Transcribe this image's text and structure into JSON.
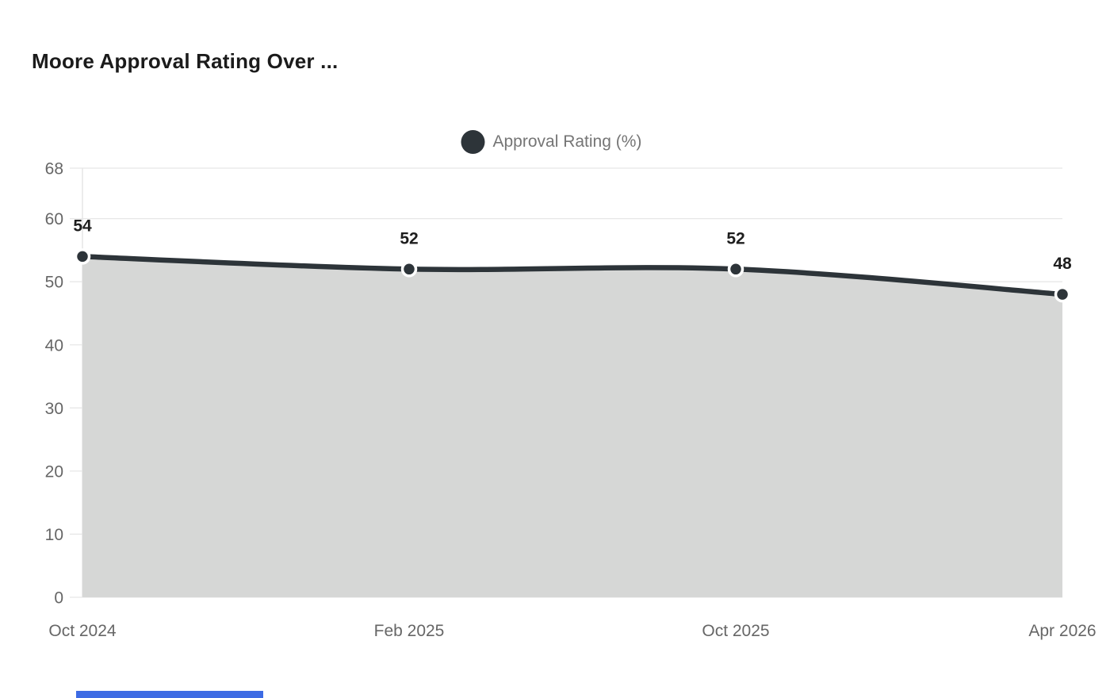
{
  "header": {
    "title": "Moore Approval Rating Over ..."
  },
  "legend": {
    "label": "Approval Rating (%)",
    "marker_color": "#2d3439",
    "text_color": "#757575"
  },
  "chart_data": {
    "type": "area",
    "title": "Moore Approval Rating Over ...",
    "categories": [
      "Oct 2024",
      "Feb 2025",
      "Oct 2025",
      "Apr 2026"
    ],
    "series": [
      {
        "name": "Approval Rating (%)",
        "values": [
          54,
          52,
          52,
          48
        ]
      }
    ],
    "point_labels": [
      "54",
      "52",
      "52",
      "48"
    ],
    "ylim": [
      0,
      68
    ],
    "yticks": [
      0,
      10,
      20,
      30,
      40,
      50,
      60,
      68
    ],
    "xlabel": "",
    "ylabel": "",
    "grid": true,
    "legend_position": "top-center",
    "line_color": "#2d3439",
    "marker_color": "#2d3439",
    "marker_ring_color": "#ffffff",
    "area_fill_color": "#d6d7d6",
    "grid_color": "#e7e7e7",
    "axis_line_color": "#e1e1e1",
    "axis_tick_color": "#666666",
    "value_label_color": "#1e1e1e"
  },
  "bottom_bar": {
    "color": "#3d6be4"
  }
}
